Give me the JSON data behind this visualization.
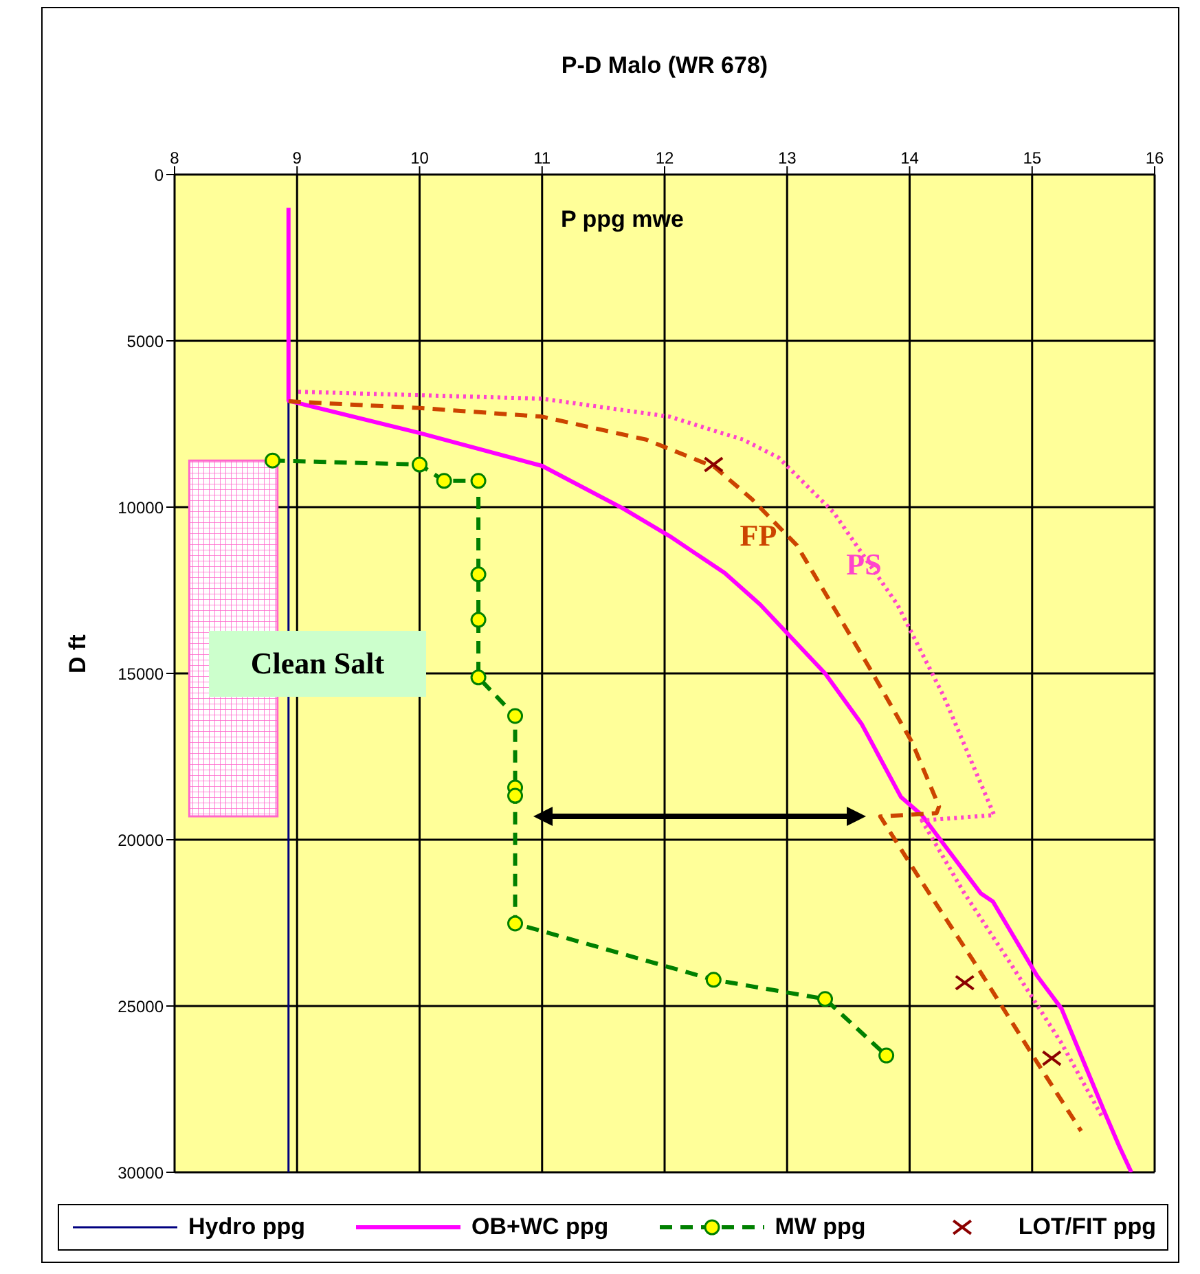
{
  "chart_data": {
    "type": "line",
    "title": "P-D Malo (WR 678)",
    "xlabel": "P ppg mwe",
    "ylabel": "D ft",
    "xlim": [
      8,
      16
    ],
    "xticks": [
      8,
      9,
      10,
      11,
      12,
      13,
      14,
      15,
      16
    ],
    "ylim": [
      30000,
      0
    ],
    "yticks": [
      0,
      5000,
      10000,
      15000,
      20000,
      25000,
      30000
    ],
    "grid": true,
    "legend": "bottom",
    "bands": [
      {
        "axis": "y",
        "from": 8600,
        "to": 19300,
        "label": "Clean Salt",
        "color": "#ff66cc"
      }
    ],
    "series": [
      {
        "name": "Hydro ppg",
        "color": "#000080",
        "line_style": "solid",
        "marker": "none",
        "x": [
          8.93,
          8.93
        ],
        "values": [
          6800,
          30000
        ]
      },
      {
        "name": "OB+WC ppg",
        "color": "#ff00ff",
        "line_style": "solid",
        "marker": "none",
        "x": [
          8.93,
          8.93,
          10,
          11,
          11.66,
          12.04,
          12.49,
          12.78,
          13.31,
          13.61,
          13.93,
          14.1,
          14.58,
          14.68,
          15.04,
          15.24,
          15.59,
          15.71,
          15.81
        ],
        "values": [
          1000,
          6800,
          7770,
          8760,
          10040,
          10870,
          11980,
          12930,
          15000,
          16530,
          18720,
          19260,
          21610,
          21860,
          24090,
          25080,
          28180,
          29210,
          30000
        ]
      },
      {
        "name": "MW ppg",
        "color": "#008000",
        "line_style": "dashed",
        "marker": "circle",
        "x": [
          8.8,
          10,
          10.2,
          10.48,
          10.48,
          10.48,
          10.48,
          10.78,
          10.78,
          10.78,
          10.78,
          12.4,
          13.31,
          13.81
        ],
        "values": [
          8600,
          8720,
          9210,
          9210,
          12020,
          13390,
          15120,
          16280,
          18430,
          18680,
          22520,
          24210,
          24790,
          26490
        ]
      },
      {
        "name": "LOT/FIT ppg",
        "type": "scatter",
        "color": "#8b0000",
        "marker": "cross",
        "x": [
          12.4,
          14.45,
          15.16
        ],
        "values": [
          8720,
          24300,
          26570
        ]
      },
      {
        "name": "FP",
        "color": "#cc4400",
        "line_style": "dashed",
        "x": [
          8.93,
          10,
          11,
          11.85,
          12.41,
          12.71,
          13.08,
          13.68,
          14.02,
          14.24,
          14.22,
          13.76,
          14.08,
          14.52,
          15.04,
          15.4
        ],
        "values": [
          6820,
          7020,
          7280,
          7970,
          8800,
          9750,
          11150,
          14880,
          17070,
          19000,
          19200,
          19300,
          21160,
          23640,
          26690,
          28760
        ]
      },
      {
        "name": "PS",
        "color": "#ff44cc",
        "line_style": "dotted",
        "x": [
          9.01,
          11,
          12.04,
          12.64,
          12.93,
          13.38,
          13.9,
          14.28,
          14.69,
          14.1,
          14.44,
          14.83,
          15.24,
          15.58
        ],
        "values": [
          6530,
          6740,
          7280,
          7970,
          8510,
          10160,
          12930,
          15700,
          19260,
          19420,
          21570,
          23760,
          26120,
          28390
        ]
      }
    ]
  }
}
